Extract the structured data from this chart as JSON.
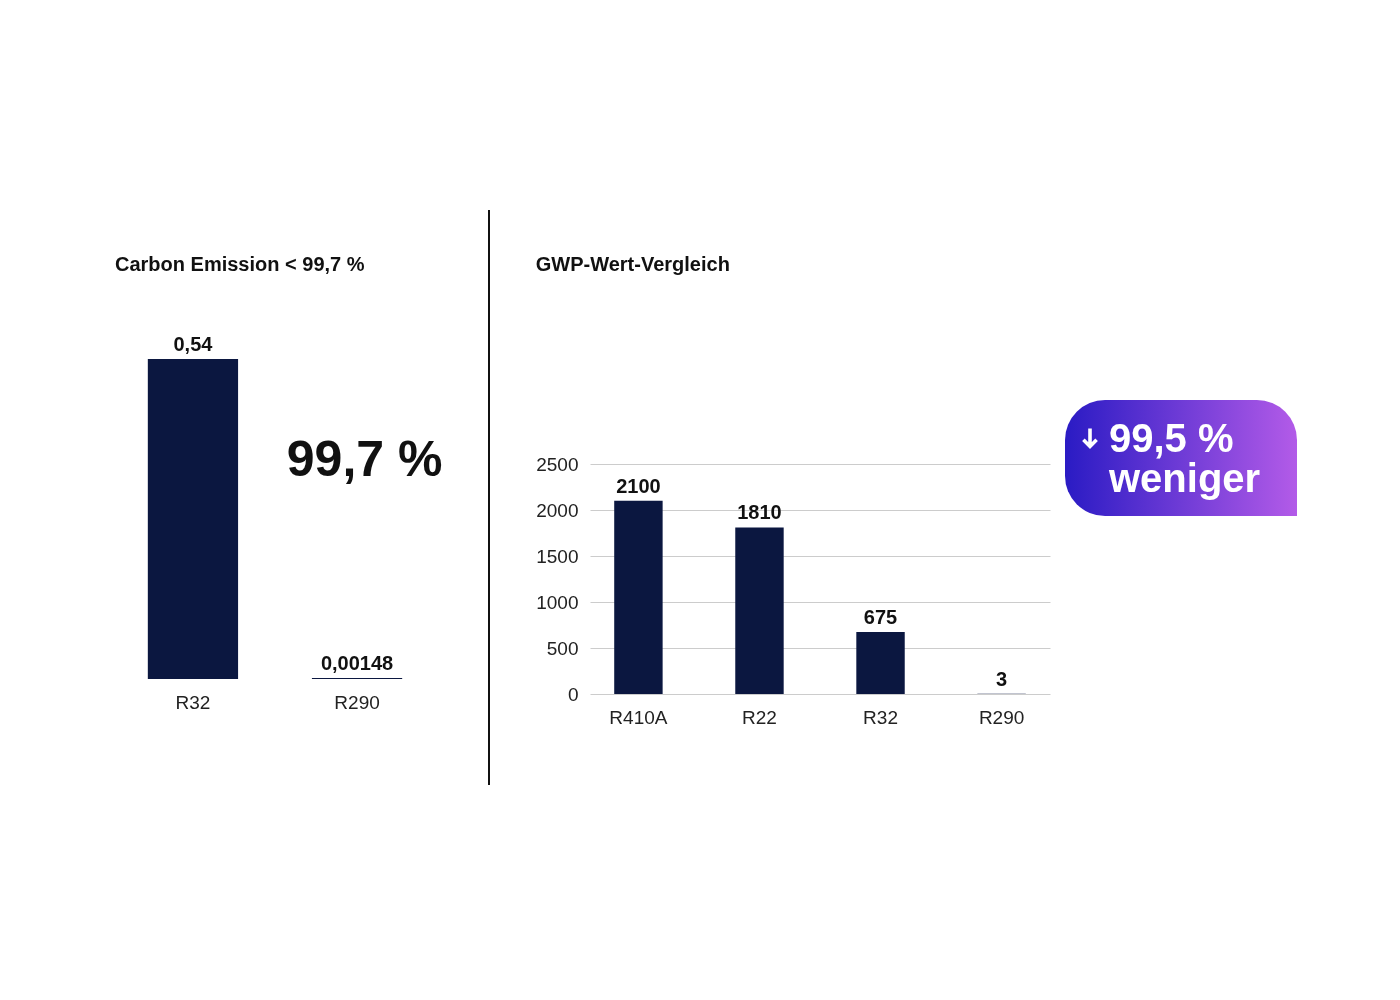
{
  "chart_data": [
    {
      "type": "bar",
      "title": "Carbon Emission < 99,7 %",
      "categories": [
        "R32",
        "R290"
      ],
      "values": [
        0.54,
        0.00148
      ],
      "value_labels": [
        "0,54",
        "0,00148"
      ],
      "color": "#0b1740",
      "tick_labels": "x",
      "grid": false,
      "annotations": [
        "99,7 %"
      ]
    },
    {
      "type": "bar",
      "title": "GWP-Wert-Vergleich",
      "categories": [
        "R410A",
        "R22",
        "R32",
        "R290"
      ],
      "values": [
        2100,
        1810,
        675,
        3
      ],
      "color": "#0b1740",
      "data_labels": true,
      "ylim": [
        0,
        2500
      ],
      "yticks": [
        0,
        500,
        1000,
        1500,
        2000,
        2500
      ],
      "grid": "y",
      "annotations": [
        "99,5 % weniger"
      ]
    }
  ]
}
